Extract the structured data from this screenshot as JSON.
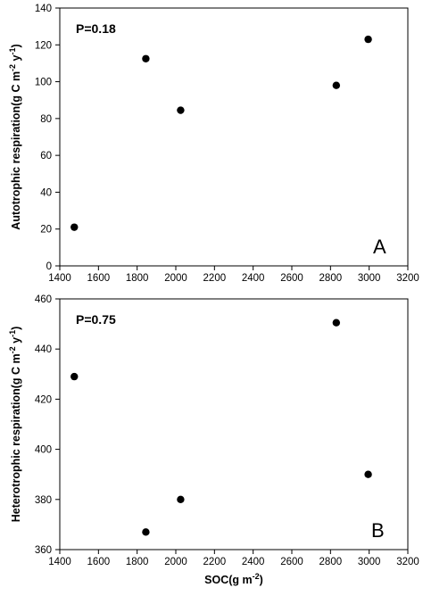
{
  "chart_data": [
    {
      "type": "scatter",
      "panel_label": "A",
      "annotation": "P=0.18",
      "xlabel": "",
      "ylabel": "Autotrophic respiration(g C m-2 y-1)",
      "ylabel_parts": {
        "base": "Autotrophic respiration(g C m",
        "exp1": "-2",
        "mid": " y",
        "exp2": "-1",
        "end": ")"
      },
      "xlim": [
        1400,
        3200
      ],
      "ylim": [
        0,
        140
      ],
      "x_ticks": [
        1400,
        1600,
        1800,
        2000,
        2200,
        2400,
        2600,
        2800,
        3000,
        3200
      ],
      "y_ticks": [
        0,
        20,
        40,
        60,
        80,
        100,
        120,
        140
      ],
      "grid": false,
      "points": [
        {
          "x": 1475,
          "y": 21
        },
        {
          "x": 1845,
          "y": 112.5
        },
        {
          "x": 2025,
          "y": 84.5
        },
        {
          "x": 2830,
          "y": 98
        },
        {
          "x": 2995,
          "y": 123
        }
      ]
    },
    {
      "type": "scatter",
      "panel_label": "B",
      "annotation": "P=0.75",
      "xlabel": "SOC(g m-2)",
      "xlabel_parts": {
        "base": "SOC(g m",
        "exp": "-2",
        "end": ")"
      },
      "ylabel": "Heterotrophic respiration(g C m-2 y-1)",
      "ylabel_parts": {
        "base": "Heterotrophic respiration(g C m",
        "exp1": "-2",
        "mid": " y",
        "exp2": "-1",
        "end": ")"
      },
      "xlim": [
        1400,
        3200
      ],
      "ylim": [
        360,
        460
      ],
      "x_ticks": [
        1400,
        1600,
        1800,
        2000,
        2200,
        2400,
        2600,
        2800,
        3000,
        3200
      ],
      "y_ticks": [
        360,
        380,
        400,
        420,
        440,
        460
      ],
      "grid": false,
      "points": [
        {
          "x": 1475,
          "y": 429
        },
        {
          "x": 1845,
          "y": 367
        },
        {
          "x": 2025,
          "y": 380
        },
        {
          "x": 2830,
          "y": 450.5
        },
        {
          "x": 2995,
          "y": 390
        }
      ]
    }
  ]
}
